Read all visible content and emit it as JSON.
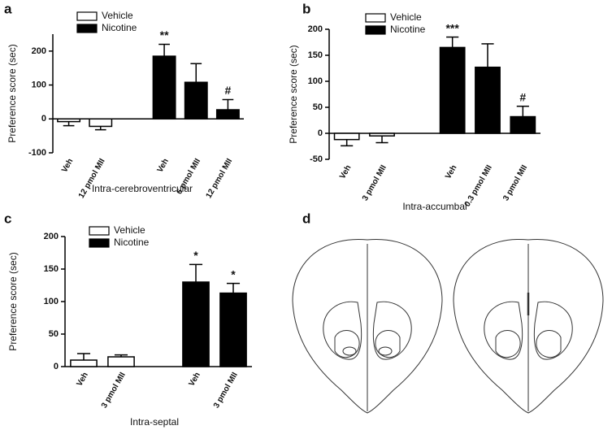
{
  "chart_data": [
    {
      "type": "bar",
      "panel": "a",
      "ylabel": "Preference score (sec)",
      "xlabel": "Intra-cerebroventricular",
      "categories": [
        "Veh",
        "12 pmol MII",
        null,
        "Veh",
        "6 pmol MII",
        "12 pmol MII"
      ],
      "series": [
        {
          "name": "Vehicle",
          "color": "#ffffff",
          "values": [
            -8,
            -22,
            null,
            null,
            null,
            null
          ],
          "errors": [
            12,
            10,
            null,
            null,
            null,
            null
          ],
          "markers": [
            null,
            null,
            null,
            null,
            null,
            null
          ]
        },
        {
          "name": "Nicotine",
          "color": "#000000",
          "values": [
            null,
            null,
            null,
            185,
            108,
            27
          ],
          "errors": [
            null,
            null,
            null,
            35,
            55,
            30
          ],
          "markers": [
            null,
            null,
            null,
            "**",
            null,
            "#"
          ]
        }
      ],
      "ylim": [
        -100,
        250
      ],
      "yticks": [
        -100,
        0,
        100,
        200
      ]
    },
    {
      "type": "bar",
      "panel": "b",
      "ylabel": "Preference score (sec)",
      "xlabel": "Intra-accumbal",
      "categories": [
        "Veh",
        "3 pmol MII",
        null,
        "Veh",
        "0.3 pmol MII",
        "3 pmol MII"
      ],
      "series": [
        {
          "name": "Vehicle",
          "color": "#ffffff",
          "values": [
            -12,
            -5,
            null,
            null,
            null,
            null
          ],
          "errors": [
            12,
            13,
            null,
            null,
            null,
            null
          ],
          "markers": [
            null,
            null,
            null,
            null,
            null,
            null
          ]
        },
        {
          "name": "Nicotine",
          "color": "#000000",
          "values": [
            null,
            null,
            null,
            165,
            127,
            32
          ],
          "errors": [
            null,
            null,
            null,
            20,
            45,
            20
          ],
          "markers": [
            null,
            null,
            null,
            "***",
            null,
            "#"
          ]
        }
      ],
      "ylim": [
        -50,
        200
      ],
      "yticks": [
        -50,
        0,
        50,
        100,
        150,
        200
      ]
    },
    {
      "type": "bar",
      "panel": "c",
      "ylabel": "Preference score (sec)",
      "xlabel": "Intra-septal",
      "categories": [
        "Veh",
        "3 pmol MII",
        null,
        "Veh",
        "3 pmol MII"
      ],
      "series": [
        {
          "name": "Vehicle",
          "color": "#ffffff",
          "values": [
            10,
            15,
            null,
            null,
            null
          ],
          "errors": [
            10,
            3,
            null,
            null,
            null
          ],
          "markers": [
            null,
            null,
            null,
            null,
            null
          ]
        },
        {
          "name": "Nicotine",
          "color": "#000000",
          "values": [
            null,
            null,
            null,
            130,
            113
          ],
          "errors": [
            null,
            null,
            null,
            27,
            15
          ],
          "markers": [
            null,
            null,
            null,
            "*",
            "*"
          ]
        }
      ],
      "ylim": [
        0,
        200
      ],
      "yticks": [
        0,
        50,
        100,
        150,
        200
      ]
    }
  ],
  "diagram": {
    "panel": "d"
  }
}
